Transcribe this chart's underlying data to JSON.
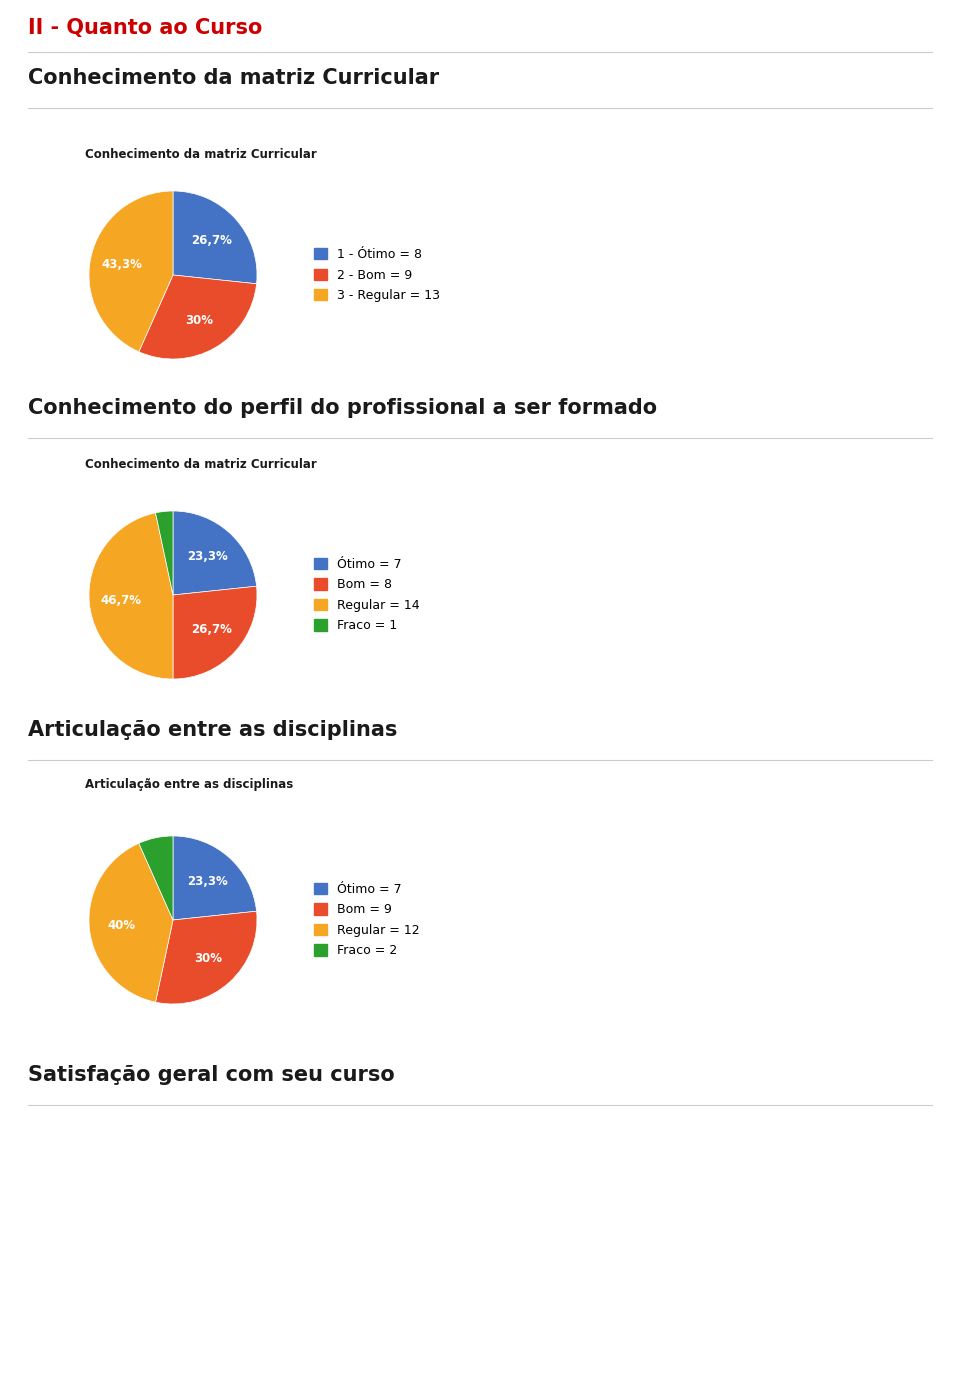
{
  "page_title": "II - Quanto ao Curso",
  "page_title_color": "#cc0000",
  "background_color": "#ffffff",
  "sections": [
    {
      "section_title": "Conhecimento da matriz Curricular",
      "chart_title": "Conhecimento da matriz Curricular",
      "values": [
        8,
        9,
        13
      ],
      "labels": [
        "1 - Ótimo = 8",
        "2 - Bom = 9",
        "3 - Regular = 13"
      ],
      "colors": [
        "#4472c4",
        "#e84c2b",
        "#f5a623"
      ],
      "pct_labels": [
        "26,7%",
        "30%",
        "43,3%"
      ],
      "startangle": 90
    },
    {
      "section_title": "Conhecimento do perfil do profissional a ser formado",
      "chart_title": "Conhecimento da matriz Curricular",
      "values": [
        7,
        8,
        14,
        1
      ],
      "labels": [
        "Ótimo = 7",
        "Bom = 8",
        "Regular = 14",
        "Fraco = 1"
      ],
      "colors": [
        "#4472c4",
        "#e84c2b",
        "#f5a623",
        "#2ca02c"
      ],
      "pct_labels": [
        "23,3%",
        "26,7%",
        "46,7%",
        ""
      ],
      "startangle": 90
    },
    {
      "section_title": "Articulação entre as disciplinas",
      "chart_title": "Articulação entre as disciplinas",
      "values": [
        7,
        9,
        12,
        2
      ],
      "labels": [
        "Ótimo = 7",
        "Bom = 9",
        "Regular = 12",
        "Fraco = 2"
      ],
      "colors": [
        "#4472c4",
        "#e84c2b",
        "#f5a623",
        "#2ca02c"
      ],
      "pct_labels": [
        "23,3%",
        "30%",
        "40%",
        ""
      ],
      "startangle": 90
    },
    {
      "section_title": "Satisfação geral com seu curso",
      "chart_title": "",
      "values": [],
      "labels": [],
      "colors": [],
      "pct_labels": [],
      "startangle": 90
    }
  ],
  "divider_color": "#cccccc",
  "section_title_fontsize": 15,
  "chart_title_fontsize": 8.5,
  "legend_fontsize": 9,
  "pct_fontsize": 8.5,
  "page_title_fontsize": 15
}
